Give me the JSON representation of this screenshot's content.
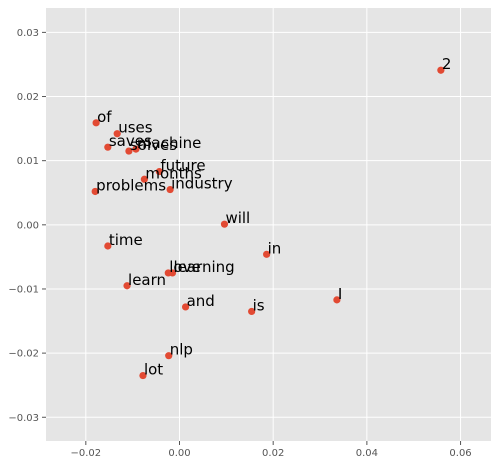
{
  "chart_data": {
    "type": "scatter",
    "title": "",
    "xlabel": "",
    "ylabel": "",
    "xlim": [
      -0.0285,
      0.0665
    ],
    "ylim": [
      -0.0337,
      0.0338
    ],
    "grid": true,
    "x_ticks": [
      {
        "value": -0.02,
        "label": "−0.02"
      },
      {
        "value": 0.0,
        "label": "0.00"
      },
      {
        "value": 0.02,
        "label": "0.02"
      },
      {
        "value": 0.04,
        "label": "0.04"
      },
      {
        "value": 0.06,
        "label": "0.06"
      }
    ],
    "y_ticks": [
      {
        "value": 0.03,
        "label": "0.03"
      },
      {
        "value": 0.02,
        "label": "0.02"
      },
      {
        "value": 0.01,
        "label": "0.01"
      },
      {
        "value": 0.0,
        "label": "0.00"
      },
      {
        "value": -0.01,
        "label": "−0.01"
      },
      {
        "value": -0.02,
        "label": "−0.02"
      },
      {
        "value": -0.03,
        "label": "−0.03"
      }
    ],
    "colors": {
      "background": "#e5e5e5",
      "grid": "#ffffff",
      "point": "#e24a33",
      "label": "#000000"
    },
    "points": [
      {
        "label": "2",
        "x": 0.0558,
        "y": 0.0241
      },
      {
        "label": "of",
        "x": -0.0178,
        "y": 0.0159
      },
      {
        "label": "uses",
        "x": -0.0133,
        "y": 0.0142
      },
      {
        "label": "saves",
        "x": -0.0153,
        "y": 0.0121
      },
      {
        "label": "solves",
        "x": -0.0108,
        "y": 0.0115
      },
      {
        "label": "machine",
        "x": -0.0093,
        "y": 0.0118
      },
      {
        "label": "future",
        "x": -0.0043,
        "y": 0.0083
      },
      {
        "label": "months",
        "x": -0.0075,
        "y": 0.0071
      },
      {
        "label": "industry",
        "x": -0.002,
        "y": 0.0055
      },
      {
        "label": "problems",
        "x": -0.018,
        "y": 0.0052
      },
      {
        "label": "will",
        "x": 0.0096,
        "y": 0.0001
      },
      {
        "label": "time",
        "x": -0.0153,
        "y": -0.0033
      },
      {
        "label": "in",
        "x": 0.0186,
        "y": -0.0046
      },
      {
        "label": "love",
        "x": -0.0024,
        "y": -0.0075
      },
      {
        "label": "learning",
        "x": -0.0015,
        "y": -0.0075
      },
      {
        "label": "learn",
        "x": -0.0112,
        "y": -0.0095
      },
      {
        "label": "I",
        "x": 0.0336,
        "y": -0.0117
      },
      {
        "label": "and",
        "x": 0.0013,
        "y": -0.0128
      },
      {
        "label": "is",
        "x": 0.0154,
        "y": -0.0135
      },
      {
        "label": "nlp",
        "x": -0.0023,
        "y": -0.0204
      },
      {
        "label": "lot",
        "x": -0.0078,
        "y": -0.0235
      }
    ]
  }
}
